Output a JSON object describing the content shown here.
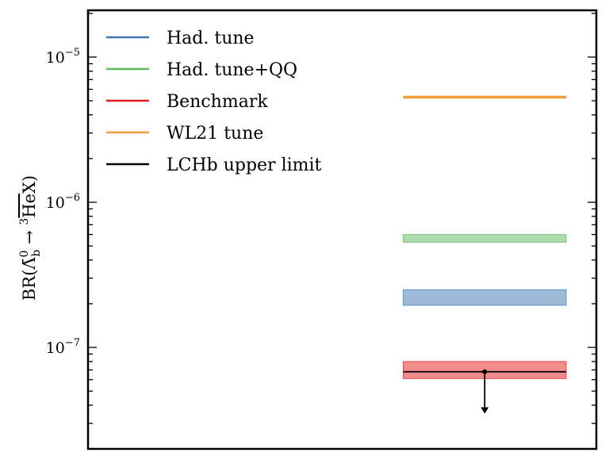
{
  "chart_data": {
    "type": "band",
    "ylabel": "BR(Λ̄⁰ᵦ → ³H̄ēX)",
    "ylabel_parts": {
      "prefix": "BR(",
      "lambda": "Λ̄",
      "lambda_sup": "0",
      "lambda_sub": "b",
      "arrow": " → ",
      "he_sup": "3",
      "he": "He",
      "suffix": "X)"
    },
    "yscale": "log",
    "ylim": [
      2e-08,
      2.1e-05
    ],
    "y_tick_labels": [
      {
        "value": 1e-05,
        "base": "10",
        "exp": "−5"
      },
      {
        "value": 1e-06,
        "base": "10",
        "exp": "−6"
      },
      {
        "value": 1e-07,
        "base": "10",
        "exp": "−7"
      }
    ],
    "x_range": [
      0,
      1
    ],
    "grid": false,
    "legend_position": "top-left",
    "series": [
      {
        "name": "Had. tune",
        "color": "#3b75af",
        "band_low": 1.95e-07,
        "band_high": 2.5e-07,
        "x_start": 0.62,
        "x_end": 1.0
      },
      {
        "name": "Had. tune+QQ",
        "color": "#5cb85c",
        "band_low": 5.3e-07,
        "band_high": 6e-07,
        "x_start": 0.62,
        "x_end": 1.0
      },
      {
        "name": "Benchmark",
        "color": "#e41a1c",
        "band_low": 6.1e-08,
        "band_high": 8e-08,
        "x_start": 0.62,
        "x_end": 1.0
      },
      {
        "name": "WL21 tune",
        "color": "#f39c35",
        "value": 5.3e-06,
        "x_start": 0.62,
        "x_end": 1.0
      },
      {
        "name": "LCHb upper limit",
        "color": "#000000",
        "value": 6.8e-08,
        "x_start": 0.62,
        "x_end": 1.0,
        "arrow_x": 0.81,
        "arrow_to": 3.5e-08
      }
    ]
  }
}
